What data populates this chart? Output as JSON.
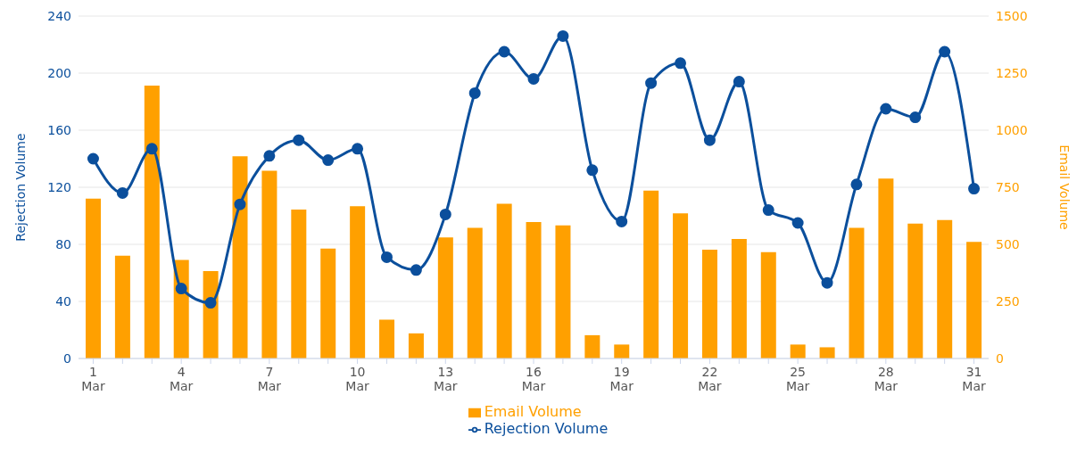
{
  "chart_data": {
    "type": "line",
    "categories": [
      "1 Mar",
      null,
      null,
      "4 Mar",
      null,
      null,
      "7 Mar",
      null,
      null,
      "10 Mar",
      null,
      null,
      "13 Mar",
      null,
      null,
      "16 Mar",
      null,
      null,
      "19 Mar",
      null,
      null,
      "22 Mar",
      null,
      null,
      "25 Mar",
      null,
      null,
      "28 Mar",
      null,
      null,
      "31 Mar"
    ],
    "series": [
      {
        "name": "Email Volume",
        "type": "bar",
        "axis": "y2",
        "color": "#ffa000",
        "values": [
          700,
          450,
          1195,
          432,
          383,
          886,
          822,
          652,
          481,
          667,
          170,
          110,
          530,
          572,
          678,
          598,
          583,
          102,
          61,
          735,
          636,
          477,
          523,
          466,
          61,
          49,
          572,
          788,
          591,
          606,
          511
        ]
      },
      {
        "name": "Rejection Volume",
        "color": "#0b4f9c",
        "values": [
          140,
          116,
          147,
          49,
          39,
          108,
          142,
          153,
          139,
          147,
          71,
          62,
          101,
          186,
          215,
          196,
          226,
          132,
          96,
          193,
          207,
          153,
          194,
          104,
          95,
          53,
          122,
          175,
          169,
          215,
          119
        ]
      }
    ],
    "ylabel": "Rejection Volume",
    "y2label": "Email Volume",
    "ylim": [
      0,
      240
    ],
    "yticks": [
      0,
      40,
      80,
      120,
      160,
      200,
      240
    ],
    "y2lim": [
      0,
      1500
    ],
    "y2ticks": [
      0,
      250,
      500,
      750,
      1000,
      1250,
      1500
    ],
    "grid": "y",
    "legend": "bottom",
    "marker": "circle",
    "line_style": "solid"
  }
}
